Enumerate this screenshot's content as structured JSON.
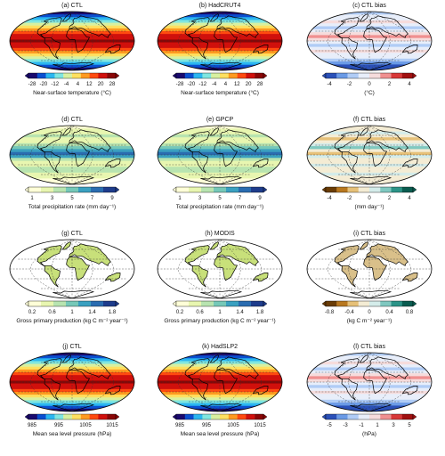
{
  "panels": [
    {
      "title": "(a) CTL",
      "scale": "temp",
      "ticks": [
        "-28",
        "-20",
        "-12",
        "-4",
        "4",
        "12",
        "20",
        "28"
      ],
      "colorbar_label": "Near-surface temperature (°C)"
    },
    {
      "title": "(b) HadCRUT4",
      "scale": "temp",
      "ticks": [
        "-28",
        "-20",
        "-12",
        "-4",
        "4",
        "12",
        "20",
        "28"
      ],
      "colorbar_label": "Near-surface temperature (°C)"
    },
    {
      "title": "(c) CTL bias",
      "scale": "div",
      "ticks": [
        "-4",
        "-2",
        "0",
        "2",
        "4"
      ],
      "colorbar_label": "(°C)"
    },
    {
      "title": "(d) CTL",
      "scale": "seq",
      "ticks": [
        "1",
        "3",
        "5",
        "7",
        "9"
      ],
      "colorbar_label": "Total precipitation rate (mm day⁻¹)"
    },
    {
      "title": "(e) GPCP",
      "scale": "seq",
      "ticks": [
        "1",
        "3",
        "5",
        "7",
        "9"
      ],
      "colorbar_label": "Total precipitation rate (mm day⁻¹)"
    },
    {
      "title": "(f) CTL bias",
      "scale": "brbg",
      "ticks": [
        "-4",
        "-2",
        "0",
        "2",
        "4"
      ],
      "colorbar_label": "(mm day⁻¹)"
    },
    {
      "title": "(g) CTL",
      "scale": "seq",
      "ticks": [
        "0.2",
        "0.6",
        "1",
        "1.4",
        "1.8"
      ],
      "colorbar_label": "Gross primary production (kg C m⁻² year⁻¹)"
    },
    {
      "title": "(h) MODIS",
      "scale": "seq",
      "ticks": [
        "0.2",
        "0.6",
        "1",
        "1.4",
        "1.8"
      ],
      "colorbar_label": "Gross primary production (kg C m⁻² year⁻¹)"
    },
    {
      "title": "(i) CTL bias",
      "scale": "brbg",
      "ticks": [
        "-0.8",
        "-0.4",
        "0",
        "0.4",
        "0.8"
      ],
      "colorbar_label": "(kg C m⁻² year⁻¹)"
    },
    {
      "title": "(j) CTL",
      "scale": "temp",
      "ticks": [
        "985",
        "995",
        "1005",
        "1015"
      ],
      "colorbar_label": "Mean sea level pressure (hPa)"
    },
    {
      "title": "(k) HadSLP2",
      "scale": "temp",
      "ticks": [
        "985",
        "995",
        "1005",
        "1015"
      ],
      "colorbar_label": "Mean sea level pressure (hPa)"
    },
    {
      "title": "(l) CTL bias",
      "scale": "div",
      "ticks": [
        "-5",
        "-3",
        "-1",
        "1",
        "3",
        "5"
      ],
      "colorbar_label": "(hPa)"
    }
  ],
  "colors": {
    "temp": [
      "#1a0a6e",
      "#0a4fd0",
      "#2bb6f0",
      "#7fe6e0",
      "#d8f0a0",
      "#ffe060",
      "#ff9a20",
      "#ff4a10",
      "#d0100c",
      "#8a0606"
    ],
    "div": [
      "#2a50b8",
      "#6a9ae6",
      "#b0ccf6",
      "#e8eefa",
      "#f6dcdc",
      "#f09090",
      "#d83838",
      "#a01010"
    ],
    "seq": [
      "#ffffd8",
      "#e8f6b0",
      "#b8e4b0",
      "#76c8b8",
      "#3aa0c0",
      "#2a6cb0",
      "#1e3c8c"
    ],
    "brbg": [
      "#6a3c06",
      "#b87820",
      "#e6c078",
      "#f4ecd4",
      "#d4ecea",
      "#80c8c0",
      "#2c9488",
      "#0a5c50"
    ]
  }
}
